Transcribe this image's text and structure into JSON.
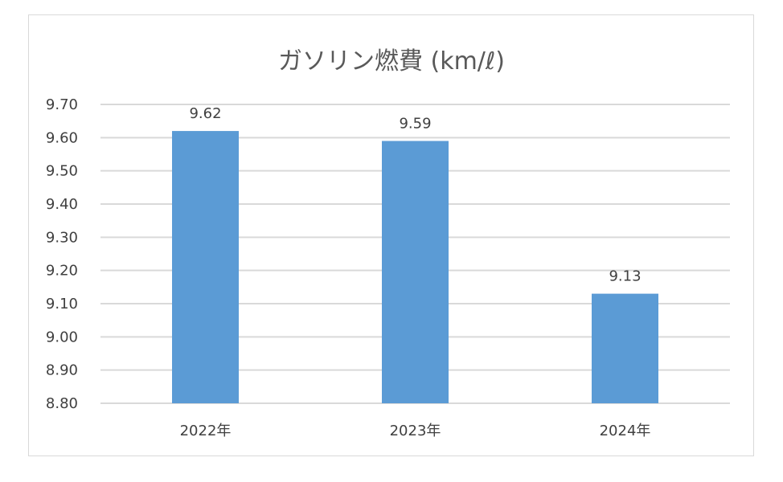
{
  "chart_data": {
    "type": "bar",
    "title": "ガソリン燃費 (km/ℓ)",
    "categories": [
      "2022年",
      "2023年",
      "2024年"
    ],
    "values": [
      9.62,
      9.59,
      9.13
    ],
    "data_labels": [
      "9.62",
      "9.59",
      "9.13"
    ],
    "ylim": [
      8.8,
      9.7
    ],
    "y_ticks": [
      "9.70",
      "9.60",
      "9.50",
      "9.40",
      "9.30",
      "9.20",
      "9.10",
      "9.00",
      "8.90",
      "8.80"
    ],
    "grid": true,
    "legend": "none",
    "bar_color": "#5b9bd5",
    "grid_color": "#d9d9d9"
  }
}
